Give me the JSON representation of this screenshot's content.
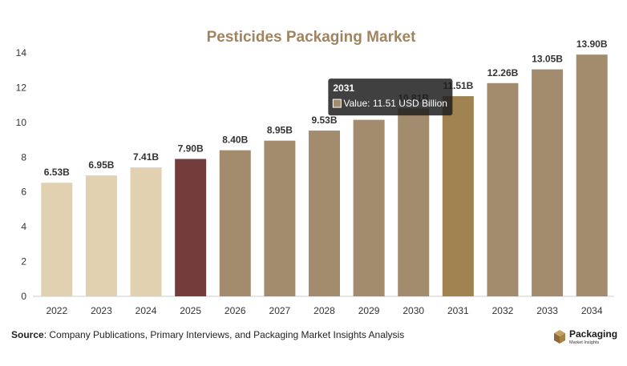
{
  "chart_data": {
    "type": "bar",
    "title": "Pesticides Packaging Market",
    "categories": [
      "2022",
      "2023",
      "2024",
      "2025",
      "2026",
      "2027",
      "2028",
      "2029",
      "2030",
      "2031",
      "2032",
      "2033",
      "2034"
    ],
    "values": [
      6.53,
      6.95,
      7.41,
      7.9,
      8.4,
      8.95,
      9.53,
      10.15,
      10.81,
      11.51,
      12.26,
      13.05,
      13.9
    ],
    "data_labels": [
      "6.53B",
      "6.95B",
      "7.41B",
      "7.90B",
      "8.40B",
      "8.95B",
      "9.53B",
      "",
      "10.81B",
      "11.51B",
      "12.26B",
      "13.05B",
      "13.90B"
    ],
    "bar_colors": [
      "#e2d1b1",
      "#e2d1b1",
      "#e2d1b1",
      "#733d3c",
      "#a38b6d",
      "#a38b6d",
      "#a38b6d",
      "#a38b6d",
      "#a38b6d",
      "#a08350",
      "#a38b6d",
      "#a38b6d",
      "#a38b6d"
    ],
    "ylim": [
      0,
      14
    ],
    "yticks": [
      0,
      2,
      4,
      6,
      8,
      10,
      12,
      14
    ],
    "xlabel": "",
    "ylabel": "",
    "grid": false,
    "legend": "none",
    "tooltip": {
      "category": "2031",
      "title": "2031",
      "text": "Value: 11.51 USD Billion"
    }
  },
  "footer": {
    "source_label": "Source",
    "source_text": ": Company Publications, Primary Interviews, and Packaging Market Insights Analysis"
  },
  "logo": {
    "word": "Packaging",
    "sub": "Market Insights"
  }
}
